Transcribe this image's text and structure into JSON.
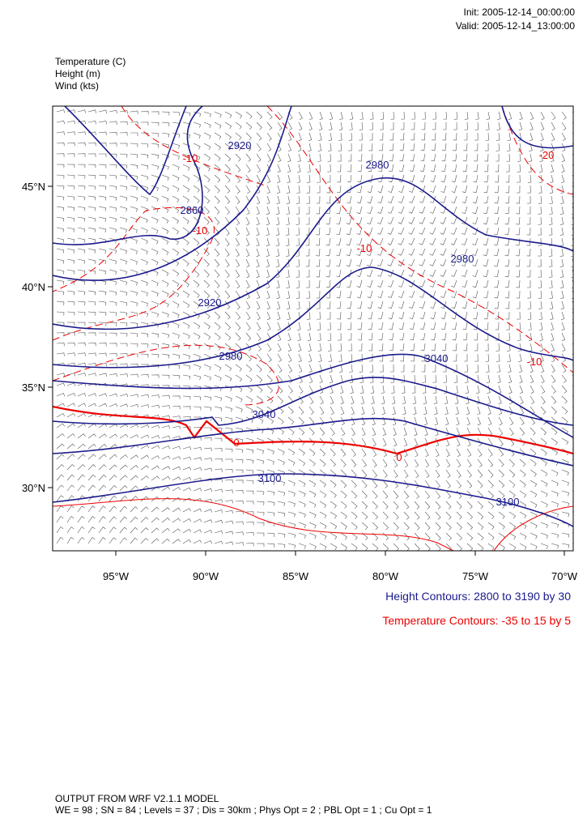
{
  "header": {
    "init": "Init: 2005-12-14_00:00:00",
    "valid": "Valid: 2005-12-14_13:00:00"
  },
  "fields": [
    "Temperature   (C)",
    "Height   (m)",
    "Wind   (kts)"
  ],
  "map": {
    "lat_labels": [
      "45°N",
      "40°N",
      "35°N",
      "30°N"
    ],
    "lon_labels": [
      "95°W",
      "90°W",
      "85°W",
      "80°W",
      "75°W",
      "70°W"
    ],
    "height_labels": [
      "2920",
      "2980",
      "2860",
      "2980",
      "2920",
      "2980",
      "3040",
      "3040",
      "3100",
      "3100"
    ],
    "temperature_labels": [
      "-10",
      "-20",
      "-10",
      "-10",
      "-10",
      "0",
      "0"
    ]
  },
  "legend": {
    "height": "Height Contours: 2800 to 3190 by 30",
    "temperature": "Temperature Contours: -35 to 15 by 5"
  },
  "footer": [
    "OUTPUT FROM WRF V2.1.1 MODEL",
    "WE = 98 ; SN = 84 ; Levels = 37 ; Dis = 30km ; Phys Opt = 2 ; PBL Opt = 1 ; Cu Opt = 1"
  ]
}
